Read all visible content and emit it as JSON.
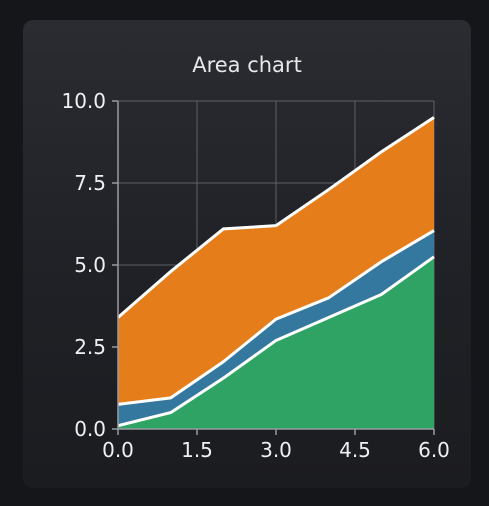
{
  "chart_data": {
    "type": "area",
    "title": "Area chart",
    "xlabel": "",
    "ylabel": "",
    "stacked": true,
    "xlim": [
      0,
      6
    ],
    "ylim": [
      0,
      10
    ],
    "grid": true,
    "x": [
      0,
      1,
      2,
      3,
      4,
      5,
      6
    ],
    "x_ticks": [
      0.0,
      1.5,
      3.0,
      4.5,
      6.0
    ],
    "x_tick_labels": [
      "0.0",
      "1.5",
      "3.0",
      "4.5",
      "6.0"
    ],
    "y_ticks": [
      0.0,
      2.5,
      5.0,
      7.5,
      10.0
    ],
    "y_tick_labels": [
      "0.0",
      "2.5",
      "5.0",
      "7.5",
      "10.0"
    ],
    "series": [
      {
        "color": "#2fa364",
        "values": [
          0.1,
          0.5,
          1.55,
          2.7,
          3.4,
          4.1,
          5.25
        ]
      },
      {
        "color": "#35789f",
        "values": [
          0.65,
          0.45,
          0.5,
          0.65,
          0.6,
          1.0,
          0.8
        ]
      },
      {
        "color": "#e57d1a",
        "values": [
          2.65,
          3.85,
          4.05,
          2.85,
          3.3,
          3.35,
          3.45
        ]
      }
    ],
    "line_color": "#ffffff",
    "grid_color": "#5d5f66",
    "axis_color": "#9a9ba2"
  }
}
